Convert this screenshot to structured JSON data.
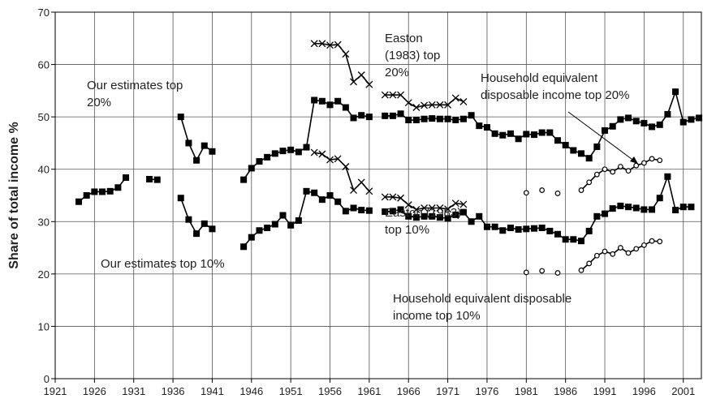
{
  "chart_data": {
    "type": "line",
    "y_label": "Share of total income %",
    "xlim": [
      1921,
      2003.3
    ],
    "ylim": [
      0,
      70
    ],
    "xticks": [
      1921,
      1926,
      1931,
      1936,
      1941,
      1946,
      1951,
      1956,
      1961,
      1966,
      1971,
      1976,
      1981,
      1986,
      1991,
      1996,
      2001
    ],
    "yticks": [
      0,
      10,
      20,
      30,
      40,
      50,
      60,
      70
    ],
    "grid": true,
    "series": [
      {
        "name": "Our estimates top 20%",
        "color": "#000000",
        "marker": "square",
        "x": [
          1937,
          1938,
          1939,
          1940,
          1941,
          null,
          1945,
          1946,
          1947,
          1948,
          1949,
          1950,
          1951,
          1952,
          1953,
          1954,
          1955,
          1956,
          1957,
          1958,
          1959,
          1960,
          1961,
          null,
          1963,
          1964,
          1965,
          1966,
          1967,
          1968,
          1969,
          1970,
          1971,
          1972,
          1973,
          1974,
          1975,
          1976,
          1977,
          1978,
          1979,
          1980,
          1981,
          1982,
          1983,
          1984,
          1985,
          1986,
          1987,
          1988,
          1989,
          1990,
          1991,
          1992,
          1993,
          1994,
          1995,
          1996,
          1997,
          1998,
          1999,
          2000,
          2001,
          2002,
          2003
        ],
        "values": [
          50,
          45,
          41.7,
          44.5,
          43.4,
          null,
          38,
          40.2,
          41.5,
          42.3,
          43,
          43.5,
          43.7,
          43.3,
          44.2,
          53.2,
          53,
          52.3,
          53,
          51.8,
          49.8,
          50.3,
          50,
          null,
          50.2,
          50.2,
          50.6,
          49.4,
          49.4,
          49.6,
          49.7,
          49.6,
          49.6,
          49.4,
          49.6,
          50.3,
          48.3,
          48,
          46.8,
          46.5,
          46.8,
          45.8,
          46.7,
          46.6,
          47,
          47,
          45.5,
          44.6,
          43.6,
          43,
          42.1,
          44.3,
          47.4,
          48.2,
          49.5,
          49.8,
          49.2,
          48.8,
          48.1,
          48.5,
          50.5,
          54.8,
          49,
          49.5,
          49.8
        ]
      },
      {
        "name": "Our estimates top 10%",
        "color": "#000000",
        "marker": "square",
        "x": [
          1924,
          1925,
          1926,
          1927,
          1928,
          1929,
          1930,
          null,
          1933,
          1934,
          null,
          1937,
          1938,
          1939,
          1940,
          1941,
          null,
          1945,
          1946,
          1947,
          1948,
          1949,
          1950,
          1951,
          1952,
          1953,
          1954,
          1955,
          1956,
          1957,
          1958,
          1959,
          1960,
          1961,
          null,
          1963,
          1964,
          1965,
          1966,
          1967,
          1968,
          1969,
          1970,
          1971,
          1972,
          1973,
          1974,
          1975,
          1976,
          1977,
          1978,
          1979,
          1980,
          1981,
          1982,
          1983,
          1984,
          1985,
          1986,
          1987,
          1988,
          1989,
          1990,
          1991,
          1992,
          1993,
          1994,
          1995,
          1996,
          1997,
          1998,
          1999,
          2000,
          2001,
          2002
        ],
        "values": [
          33.8,
          35,
          35.7,
          35.7,
          35.8,
          36.5,
          38.4,
          null,
          38.1,
          38,
          null,
          34.5,
          30.4,
          27.7,
          29.6,
          28.6,
          null,
          25.2,
          27,
          28.3,
          28.8,
          29.5,
          31.2,
          29.3,
          30.2,
          35.8,
          35.5,
          34.2,
          35,
          33.8,
          32,
          32.6,
          32.2,
          32.1,
          null,
          31.9,
          32,
          32.3,
          31,
          30.8,
          31,
          31,
          30.8,
          30.6,
          31.3,
          31.8,
          30,
          31,
          29,
          29,
          28.3,
          28.8,
          28.5,
          28.6,
          28.7,
          28.8,
          28.2,
          27.6,
          26.6,
          26.6,
          26.3,
          28.2,
          31,
          31.5,
          32.5,
          33,
          32.8,
          32.6,
          32.3,
          32.3,
          34.5,
          38.6,
          32.2,
          32.8,
          32.8
        ]
      },
      {
        "name": "Easton (1983) top 20%",
        "color": "#000000",
        "marker": "cross",
        "x": [
          1954,
          1955,
          1956,
          1957,
          1958,
          1959,
          1960,
          1961,
          null,
          1963,
          1964,
          1965,
          1966,
          1967,
          1968,
          1969,
          1970,
          1971,
          1972,
          1973
        ],
        "values": [
          64,
          64,
          63.7,
          63.8,
          62,
          56.7,
          58,
          56.2,
          null,
          54.2,
          54.2,
          54.2,
          52.7,
          51.8,
          52.2,
          52.3,
          52.3,
          52.3,
          53.6,
          52.9
        ]
      },
      {
        "name": "Easton (1983) top 10%",
        "color": "#000000",
        "marker": "cross",
        "x": [
          1954,
          1955,
          1956,
          1957,
          1958,
          1959,
          1960,
          1961,
          null,
          1963,
          1964,
          1965,
          1966,
          1967,
          1968,
          1969,
          1970,
          1971,
          1972,
          1973
        ],
        "values": [
          43.2,
          42.9,
          41.8,
          42,
          40.5,
          36,
          37.5,
          35.8,
          null,
          34.7,
          34.7,
          34.5,
          33.2,
          32.3,
          32.6,
          32.6,
          32.6,
          32.4,
          33.5,
          33.3
        ]
      },
      {
        "name": "Household equivalent disposable income top 20%",
        "color": "#000000",
        "marker": "circle",
        "x": [
          1981,
          null,
          1983,
          null,
          1985,
          null,
          1988,
          1989,
          1990,
          1991,
          1992,
          1993,
          1994,
          1995,
          1996,
          1997,
          1998
        ],
        "values": [
          35.5,
          null,
          36,
          null,
          35.4,
          null,
          36,
          37.5,
          39,
          40,
          39.5,
          40.5,
          39.7,
          40.7,
          41.2,
          42,
          41.7
        ]
      },
      {
        "name": "Household equivalent disposable income top 10%",
        "color": "#000000",
        "marker": "circle",
        "x": [
          1981,
          null,
          1983,
          null,
          1985,
          null,
          1988,
          1989,
          1990,
          1991,
          1992,
          1993,
          1994,
          1995,
          1996,
          1997,
          1998
        ],
        "values": [
          20.3,
          null,
          20.6,
          null,
          20.2,
          null,
          20.7,
          22,
          23.5,
          24.3,
          23.8,
          25,
          24,
          24.8,
          25.5,
          26.3,
          26.2
        ]
      }
    ],
    "annotations": [
      {
        "lines": [
          "Our estimates top",
          "20%"
        ]
      },
      {
        "lines": [
          "Easton",
          "(1983) top",
          "20%"
        ]
      },
      {
        "lines": [
          "Household equivalent",
          "disposable income top 20%"
        ]
      },
      {
        "lines": [
          "Easton (1983)",
          "top 10%"
        ]
      },
      {
        "lines": [
          "Our estimates top 10%"
        ]
      },
      {
        "lines": [
          "Household equivalent disposable",
          "income top 10%"
        ]
      }
    ]
  }
}
